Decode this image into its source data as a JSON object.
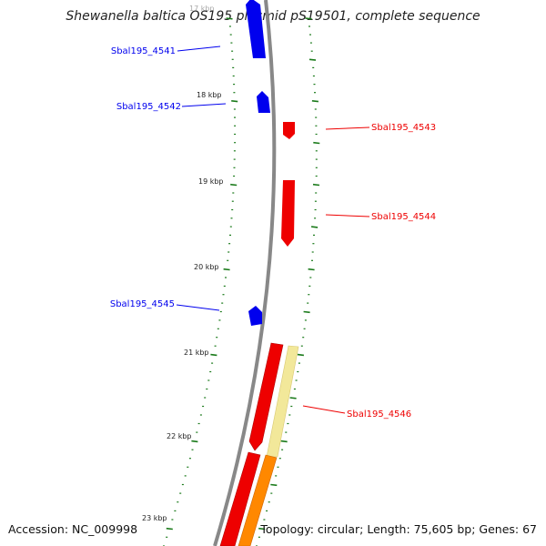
{
  "title": "Shewanella baltica OS195 plasmid pS19501, complete sequence",
  "accession_text": "Accession: NC_009998",
  "summary_text": "Topology: circular; Length: 75,605 bp; Genes: 67",
  "colors": {
    "reverse_strand_gene": "#0000ee",
    "forward_strand_gene": "#ee0000",
    "cds": "#ff8800",
    "highlight": "#f2e89a",
    "backbone": "#888888",
    "tick": "#1a7a1a"
  },
  "scale_labels": [
    "18 kbp",
    "19 kbp",
    "20 kbp",
    "21 kbp",
    "22 kbp",
    "23 kbp"
  ],
  "partial_top_scale_label": "17 kbp",
  "genes": [
    {
      "name": "Sbal195_4541",
      "strand": "reverse"
    },
    {
      "name": "Sbal195_4542",
      "strand": "reverse"
    },
    {
      "name": "Sbal195_4543",
      "strand": "forward"
    },
    {
      "name": "Sbal195_4544",
      "strand": "forward"
    },
    {
      "name": "Sbal195_4545",
      "strand": "reverse"
    },
    {
      "name": "Sbal195_4546",
      "strand": "forward"
    }
  ]
}
